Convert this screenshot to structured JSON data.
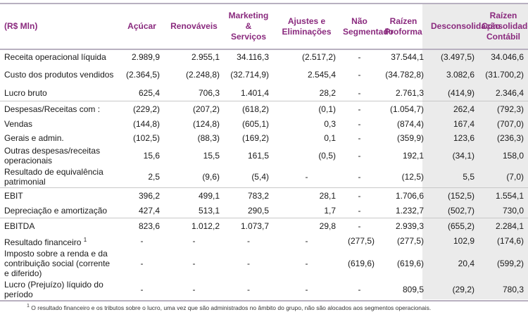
{
  "header": [
    "(R$ Mln)",
    "Açúcar",
    "Renováveis",
    "Marketing & Serviços",
    "Ajustes e Eliminações",
    "Não Segmentado",
    "Raízen Proforma",
    "Desconsolidação",
    "Raízen Consolidado Contábil"
  ],
  "rows": [
    {
      "label": "Receita operacional líquida",
      "values": [
        "2.989,9",
        "2.955,1",
        "34.116,3",
        "(2.517,2)",
        "-",
        "37.544,1",
        "(3.497,5)",
        "34.046,6"
      ]
    },
    {
      "label": "Custo dos produtos vendidos",
      "values": [
        "(2.364,5)",
        "(2.248,8)",
        "(32.714,9)",
        "2.545,4",
        "-",
        "(34.782,8)",
        "3.082,6",
        "(31.700,2)"
      ]
    },
    {
      "label": "Lucro bruto",
      "values": [
        "625,4",
        "706,3",
        "1.401,4",
        "28,2",
        "-",
        "2.761,3",
        "(414,9)",
        "2.346,4"
      ]
    },
    {
      "label": "Despesas/Receitas com :",
      "values": [
        "(229,2)",
        "(207,2)",
        "(618,2)",
        "(0,1)",
        "-",
        "(1.054,7)",
        "262,4",
        "(792,3)"
      ]
    },
    {
      "label": "Vendas",
      "values": [
        "(144,8)",
        "(124,8)",
        "(605,1)",
        "0,3",
        "-",
        "(874,4)",
        "167,4",
        "(707,0)"
      ]
    },
    {
      "label": "Gerais e admin.",
      "values": [
        "(102,5)",
        "(88,3)",
        "(169,2)",
        "0,1",
        "-",
        "(359,9)",
        "123,6",
        "(236,3)"
      ]
    },
    {
      "label": "Outras despesas/receitas operacionais",
      "values": [
        "15,6",
        "15,5",
        "161,5",
        "(0,5)",
        "-",
        "192,1",
        "(34,1)",
        "158,0"
      ]
    },
    {
      "label": "Resultado de equivalência patrimonial",
      "values": [
        "2,5",
        "(9,6)",
        "(5,4)",
        "-",
        "-",
        "(12,5)",
        "5,5",
        "(7,0)"
      ]
    },
    {
      "label": "EBIT",
      "values": [
        "396,2",
        "499,1",
        "783,2",
        "28,1",
        "-",
        "1.706,6",
        "(152,5)",
        "1.554,1"
      ]
    },
    {
      "label": "Depreciação e amortização",
      "values": [
        "427,4",
        "513,1",
        "290,5",
        "1,7",
        "-",
        "1.232,7",
        "(502,7)",
        "730,0"
      ]
    },
    {
      "label": "EBITDA",
      "values": [
        "823,6",
        "1.012,2",
        "1.073,7",
        "29,8",
        "-",
        "2.939,3",
        "(655,2)",
        "2.284,1"
      ]
    },
    {
      "label": "Resultado financeiro",
      "values": [
        "-",
        "-",
        "-",
        "-",
        "(277,5)",
        "(277,5)",
        "102,9",
        "(174,6)"
      ]
    },
    {
      "label": "Imposto sobre a renda e da contribuição social (corrente e diferido)",
      "values": [
        "-",
        "-",
        "-",
        "-",
        "(619,6)",
        "(619,6)",
        "20,4",
        "(599,2)"
      ]
    },
    {
      "label": "Lucro (Prejuízo) líquido do período",
      "values": [
        "-",
        "-",
        "-",
        "-",
        "-",
        "809,5",
        "(29,2)",
        "780,3"
      ]
    }
  ],
  "footnote_marker": "1",
  "footnote": "O resultado financeiro e os tributos sobre o lucro, uma vez que são administrados no âmbito do grupo, não são alocados aos segmentos operacionais.",
  "colors": {
    "header_text": "#8a2a7e",
    "shaded_column": "#ebebeb",
    "rule": "#b8b0c0"
  }
}
